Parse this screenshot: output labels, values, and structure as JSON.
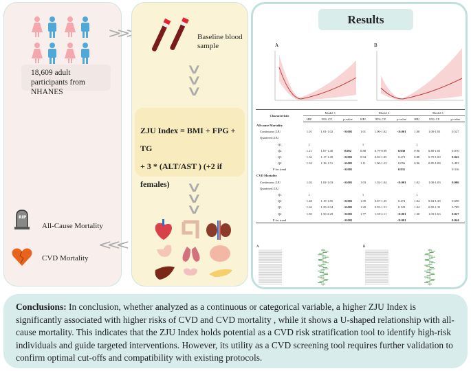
{
  "left": {
    "participants": "18,609 adult participants from NHANES",
    "outcomes": [
      {
        "label": "All-Cause Mortality",
        "icon": "tombstone-icon",
        "icon_text": "RIP"
      },
      {
        "label": "CVD Mortality",
        "icon": "broken-heart-icon"
      }
    ]
  },
  "middle": {
    "sample_label": "Baseline blood sample",
    "formula_line1": "ZJU Index = BMI  + FPG + TG",
    "formula_line2": "+ 3 * (ALT/AST ) (+2 if females)"
  },
  "results": {
    "title": "Results",
    "plot_a_label": "A",
    "plot_b_label": "B",
    "forest_a_label": "A",
    "forest_b_label": "B",
    "table": {
      "header_char": "Characteristic",
      "models": [
        "Model 1",
        "Model 2",
        "Model 3"
      ],
      "subheaders": [
        "HR¹",
        "95% CI¹",
        "p-value"
      ],
      "rows": [
        {
          "type": "sec",
          "label": "All-cause Mortality"
        },
        {
          "type": "sub",
          "label": "Continuous ZJU",
          "v": [
            "1.01",
            "1.01-1.02",
            "<0.001",
            "1.01",
            "1.00-1.02",
            "<0.001",
            "1.00",
            "1.00-1.01",
            "0.527"
          ],
          "bold": [
            2,
            5
          ]
        },
        {
          "type": "sub",
          "label": "Quartered ZJU"
        },
        {
          "type": "q",
          "label": "Q1",
          "v": [
            "1",
            "",
            "",
            "1",
            "",
            "",
            "1",
            "",
            ""
          ]
        },
        {
          "type": "q",
          "label": "Q2",
          "v": [
            "1.21",
            "1.07-1.40",
            "0.002",
            "0.88",
            "0.79-0.99",
            "0.030",
            "0.90",
            "0.80-1.01",
            "0.070"
          ],
          "bold": [
            2,
            5
          ]
        },
        {
          "type": "q",
          "label": "Q3",
          "v": [
            "1.32",
            "1.17-1.49",
            "<0.001",
            "0.94",
            "0.83-1.05",
            "0.273",
            "0.88",
            "0.79-1.00",
            "0.043"
          ],
          "bold": [
            2,
            8
          ]
        },
        {
          "type": "q",
          "label": "Q4",
          "v": [
            "1.34",
            "1.18-1.51",
            "<0.001",
            "1.11",
            "1.00-1.23",
            "0.056",
            "0.96",
            "0.85-1.08",
            "0.493"
          ],
          "bold": [
            2
          ]
        },
        {
          "type": "q",
          "label": "P for trend",
          "v": [
            "",
            "",
            "<0.001",
            "",
            "",
            "0.031",
            "",
            "",
            "0.316"
          ],
          "bold": [
            2,
            5
          ]
        },
        {
          "type": "sec",
          "label": "CVD Mortality"
        },
        {
          "type": "sub",
          "label": "Continuous ZJU",
          "v": [
            "1.02",
            "1.02-1.03",
            "<0.001",
            "1.03",
            "1.02-1.04",
            "<0.001",
            "1.02",
            "1.00-1.03",
            "0.006"
          ],
          "bold": [
            2,
            5,
            8
          ]
        },
        {
          "type": "sub",
          "label": "Quartered ZJU"
        },
        {
          "type": "q",
          "label": "Q1",
          "v": [
            "1",
            "",
            "",
            "1",
            "",
            "",
            "1",
            "",
            ""
          ]
        },
        {
          "type": "q",
          "label": "Q2",
          "v": [
            "1.48",
            "1.19-1.85",
            "<0.001",
            "1.09",
            "0.87-1.35",
            "0.474",
            "1.04",
            "0.84-1.38",
            "0.698"
          ],
          "bold": [
            2
          ]
        },
        {
          "type": "q",
          "label": "Q3",
          "v": [
            "1.62",
            "1.29-2.04",
            "<0.001",
            "1.20",
            "0.95-1.51",
            "0.129",
            "1.04",
            "0.82-1.31",
            "0.769"
          ],
          "bold": [
            2
          ]
        },
        {
          "type": "q",
          "label": "Q4",
          "v": [
            "1.83",
            "1.50-2.29",
            "<0.001",
            "1.77",
            "1.39-2.11",
            "<0.001",
            "1.30",
            "1.03-1.63",
            "0.027"
          ],
          "bold": [
            2,
            5,
            8
          ]
        },
        {
          "type": "q",
          "label": "P for trend",
          "v": [
            "",
            "",
            "<0.001",
            "",
            "",
            "<0.001",
            "",
            "",
            "0.044"
          ],
          "bold": [
            2,
            5,
            8
          ]
        }
      ]
    }
  },
  "conclusion": {
    "label": "Conclusions:",
    "text": " In conclusion, whether analyzed as a continuous or categorical variable, a higher ZJU Index is significantly associated with higher risks of CVD and CVD mortality , while it shows a U-shaped relationship with all-cause mortality. This indicates that the ZJU Index holds potential as a CVD risk stratification tool to identify high-risk individuals and guide targeted interventions. However, its utility as a CVD screening tool requires further validation to confirm optimal cut-offs and compatibility with existing protocols."
  },
  "colors": {
    "female": "#f4a7ad",
    "male": "#4fa8d8",
    "ci_band": "#f9d4d4",
    "curve": "#c0393b"
  }
}
